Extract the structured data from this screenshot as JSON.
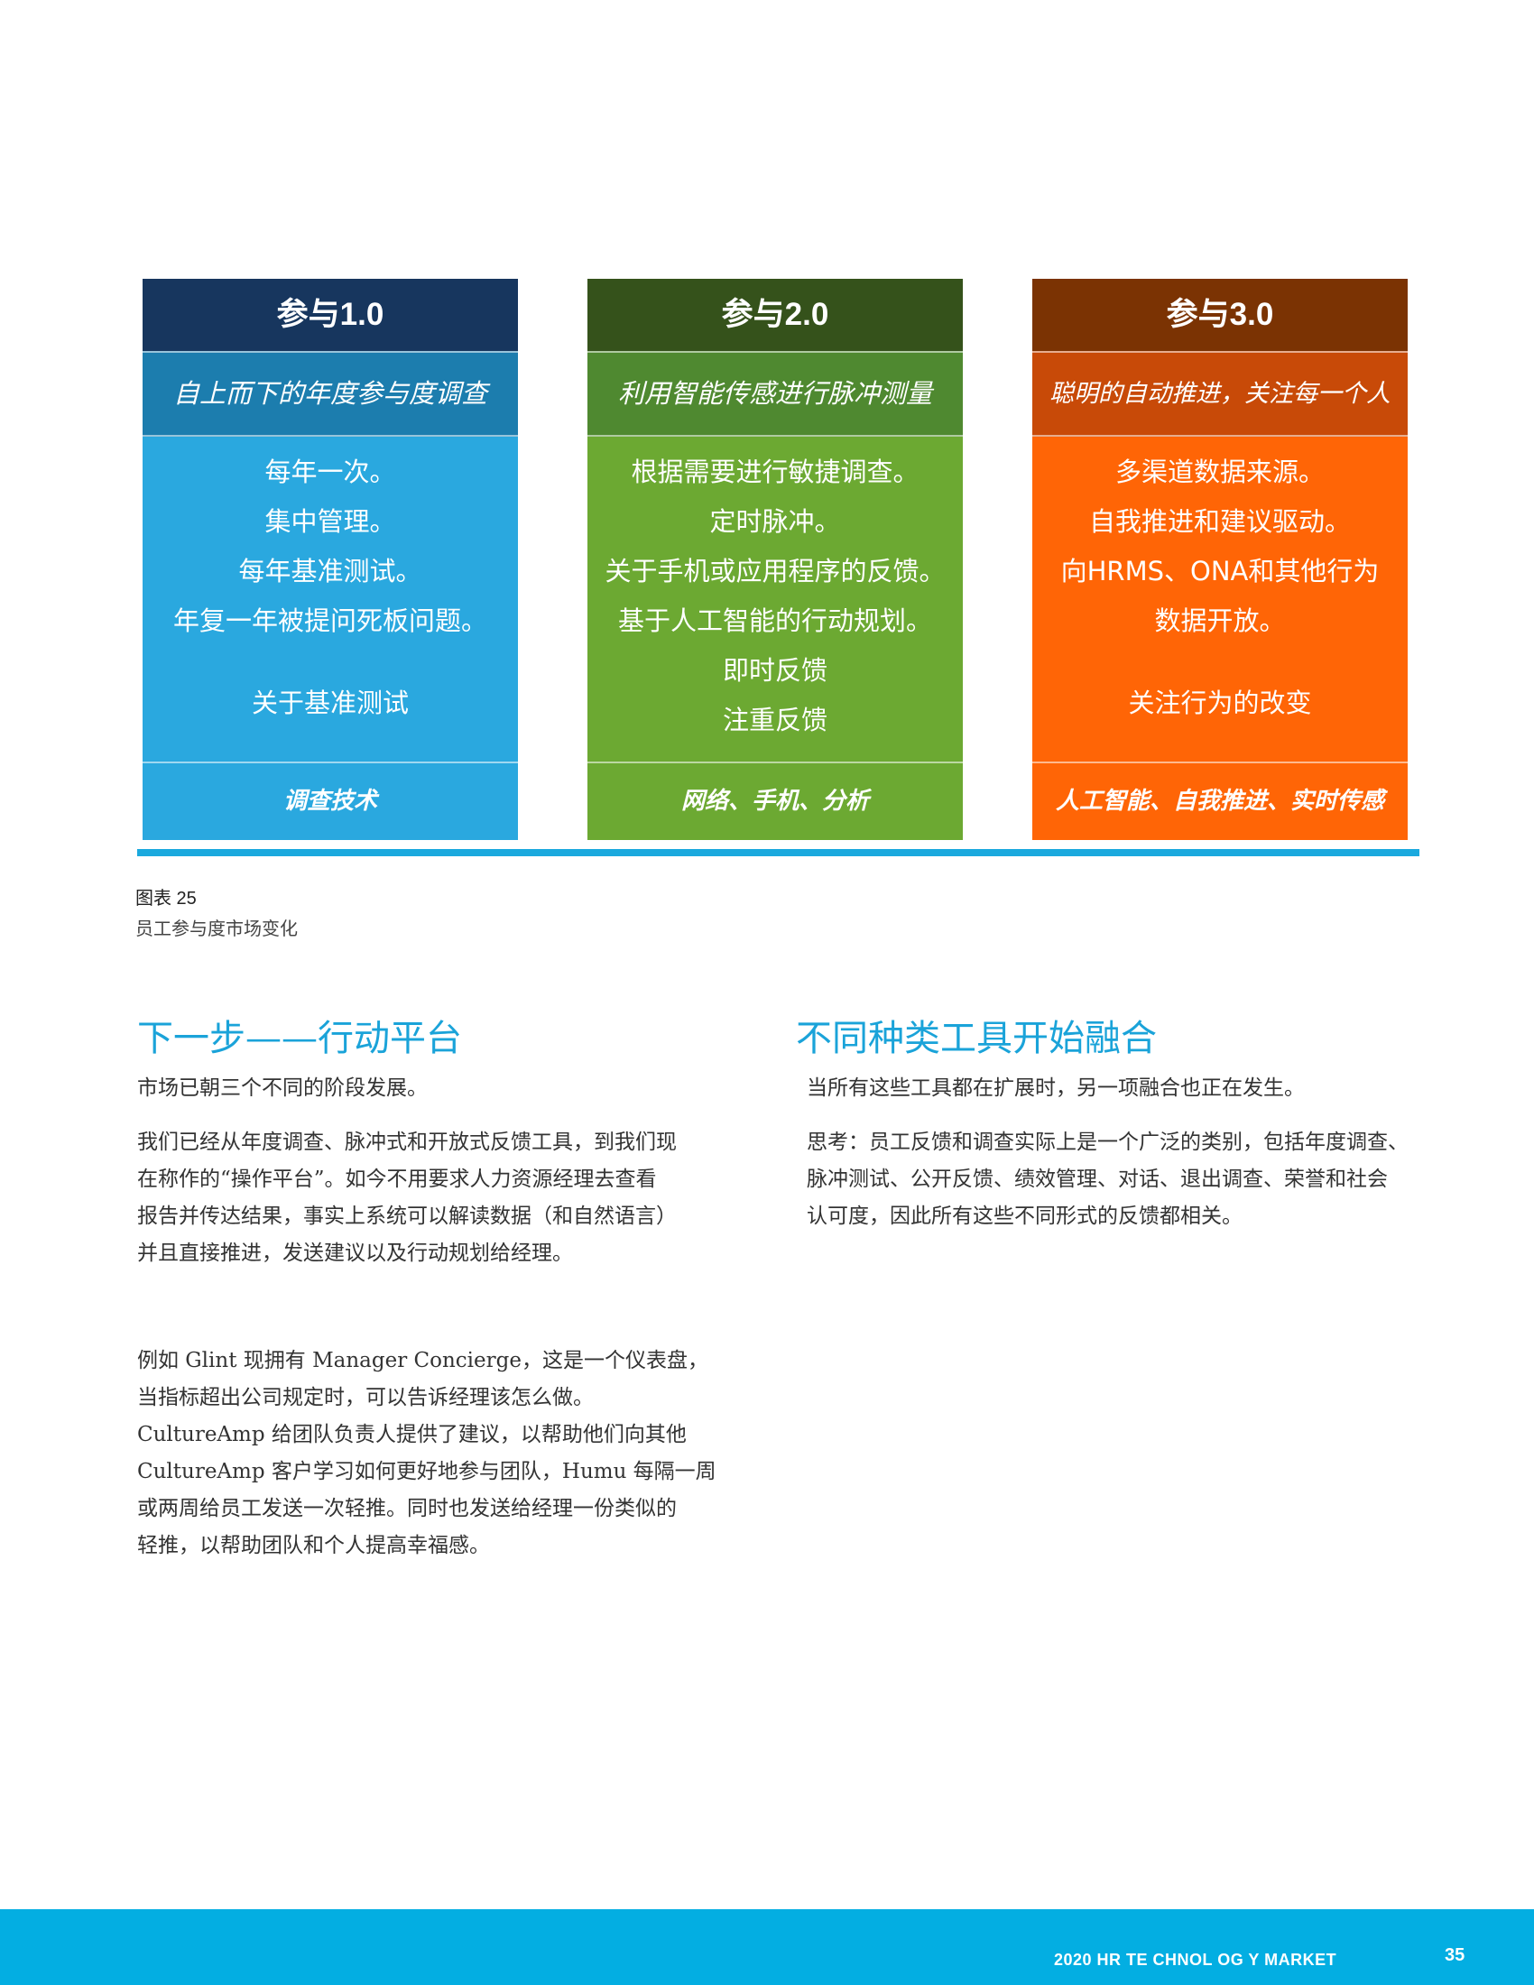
{
  "figure": {
    "columns": [
      {
        "header": "参与1.0",
        "subtitle": "自上而下的年度参与度调查",
        "lines": [
          "每年一次。",
          "集中管理。",
          "每年基准测试。",
          "年复一年被提问死板问题。"
        ],
        "extra_lines": [
          "关于基准测试"
        ],
        "footer": "调查技术"
      },
      {
        "header": "参与2.0",
        "subtitle": "利用智能传感进行脉冲测量",
        "lines": [
          "根据需要进行敏捷调查。",
          "定时脉冲。",
          "关于手机或应用程序的反馈。",
          "基于人工智能的行动规划。",
          "即时反馈",
          "注重反馈"
        ],
        "footer": "网络、手机、分析"
      },
      {
        "header": "参与3.0",
        "subtitle": "聪明的自动推进，关注每一个人",
        "lines": [
          "多渠道数据来源。",
          "自我推进和建议驱动。",
          "向HRMS、ONA和其他行为",
          "数据开放。"
        ],
        "extra_lines": [
          "关注行为的改变"
        ],
        "footer": "人工智能、自我推进、实时传感"
      }
    ],
    "caption_label": "图表 25",
    "caption_text": "员工参与度市场变化"
  },
  "left_section": {
    "title": "下一步——行动平台",
    "p1": "市场已朝三个不同的阶段发展。",
    "p2": [
      "我们已经从年度调查、脉冲式和开放式反馈工具，到我们现",
      "在称作的“操作平台”。如今不用要求人力资源经理去查看",
      "报告并传达结果，事实上系统可以解读数据（和自然语言）",
      "并且直接推进，发送建议以及行动规划给经理。"
    ],
    "p3": [
      "例如 Glint 现拥有 Manager Concierge，这是一个仪表盘，",
      "当指标超出公司规定时，可以告诉经理该怎么做。",
      "CultureAmp 给团队负责人提供了建议，以帮助他们向其他",
      "CultureAmp 客户学习如何更好地参与团队，Humu 每隔一周",
      "或两周给员工发送一次轻推。同时也发送给经理一份类似的",
      "轻推，以帮助团队和个人提高幸福感。"
    ]
  },
  "right_section": {
    "title": "不同种类工具开始融合",
    "p1": "当所有这些工具都在扩展时，另一项融合也正在发生。",
    "p2": [
      "思考：员工反馈和调查实际上是一个广泛的类别，包括年度调查、",
      "脉冲测试、公开反馈、绩效管理、对话、退出调查、荣誉和社会",
      "认可度，因此所有这些不同形式的反馈都相关。"
    ]
  },
  "footer": {
    "title": "2020 HR TE CHNOL OG Y MARKET",
    "page": "35"
  }
}
